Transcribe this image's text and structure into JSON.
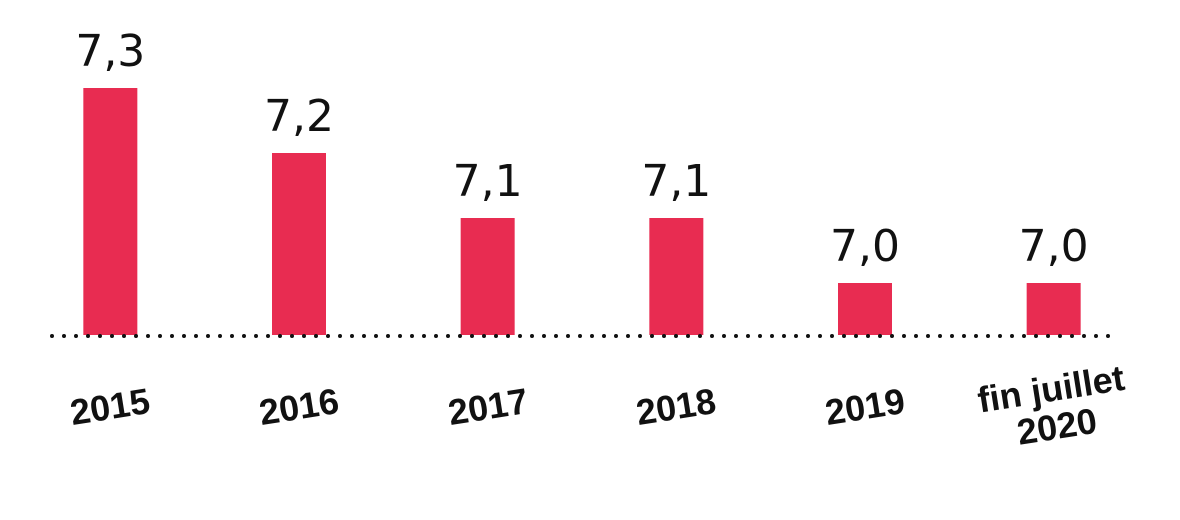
{
  "chart_data": {
    "type": "bar",
    "categories": [
      "2015",
      "2016",
      "2017",
      "2018",
      "2019",
      "fin juillet 2020"
    ],
    "values": [
      7.3,
      7.2,
      7.1,
      7.1,
      7.0,
      7.0
    ],
    "value_labels": [
      "7,3",
      "7,2",
      "7,1",
      "7,1",
      "7,0",
      "7,0"
    ],
    "color": "#e82c51",
    "ylim": [
      6.92,
      7.32
    ]
  }
}
